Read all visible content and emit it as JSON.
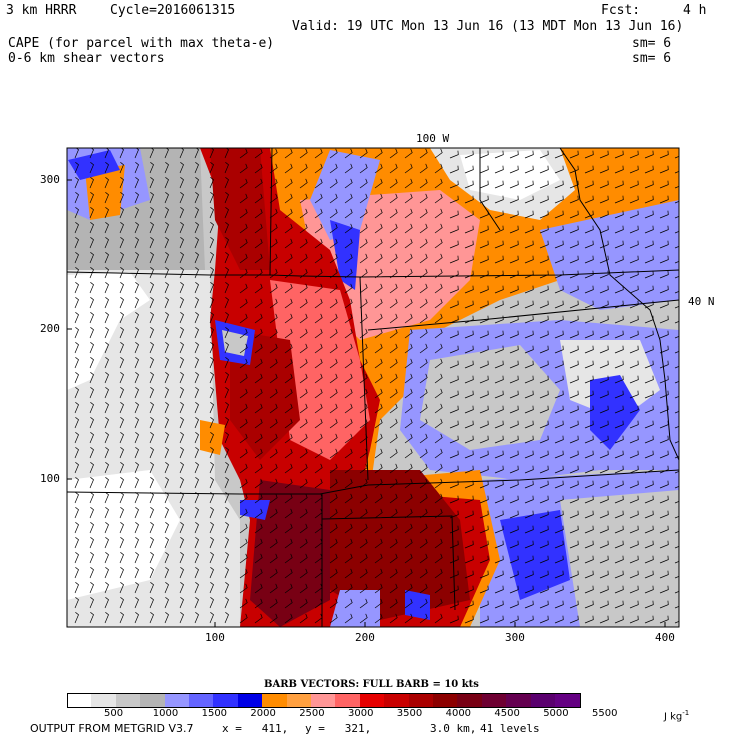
{
  "header": {
    "model": "3 km HRRR",
    "cycle": "Cycle=2016061315",
    "fcst_label": "Fcst:",
    "fcst_value": "4 h",
    "valid": "Valid: 19 UTC Mon 13 Jun 16 (13 MDT Mon 13 Jun 16)",
    "field1": "CAPE (for parcel with max theta-e)",
    "field1_sm": "sm= 6",
    "field2": "0-6 km shear vectors",
    "field2_sm": "sm= 6"
  },
  "map": {
    "lon_label": "100 W",
    "lat_label": "40 N",
    "y_ticks": [
      "300",
      "200",
      "100"
    ],
    "x_ticks": [
      "100",
      "200",
      "300",
      "400"
    ]
  },
  "colorbar": {
    "title": "BARB VECTORS:  FULL BARB = 10 kts",
    "colors": [
      "#ffffff",
      "#e6e6e6",
      "#c8c8c8",
      "#b4b4b4",
      "#9696ff",
      "#6464ff",
      "#3232ff",
      "#0000e6",
      "#ff8c00",
      "#ffa040",
      "#ff9696",
      "#ff6464",
      "#e60000",
      "#c80000",
      "#aa0000",
      "#8c0000",
      "#780014",
      "#6e0032",
      "#640050",
      "#5a006e",
      "#640082"
    ],
    "labels": [
      "500",
      "1000",
      "1500",
      "2000",
      "2500",
      "3000",
      "3500",
      "4000",
      "4500",
      "5000",
      "5500"
    ],
    "units": "J kg",
    "units_exp": "-1"
  },
  "footer": {
    "source": "OUTPUT FROM METGRID V3.7",
    "x": "x =   411,",
    "y": "y =   321,",
    "res": "3.0 km,",
    "levels": "41 levels"
  }
}
